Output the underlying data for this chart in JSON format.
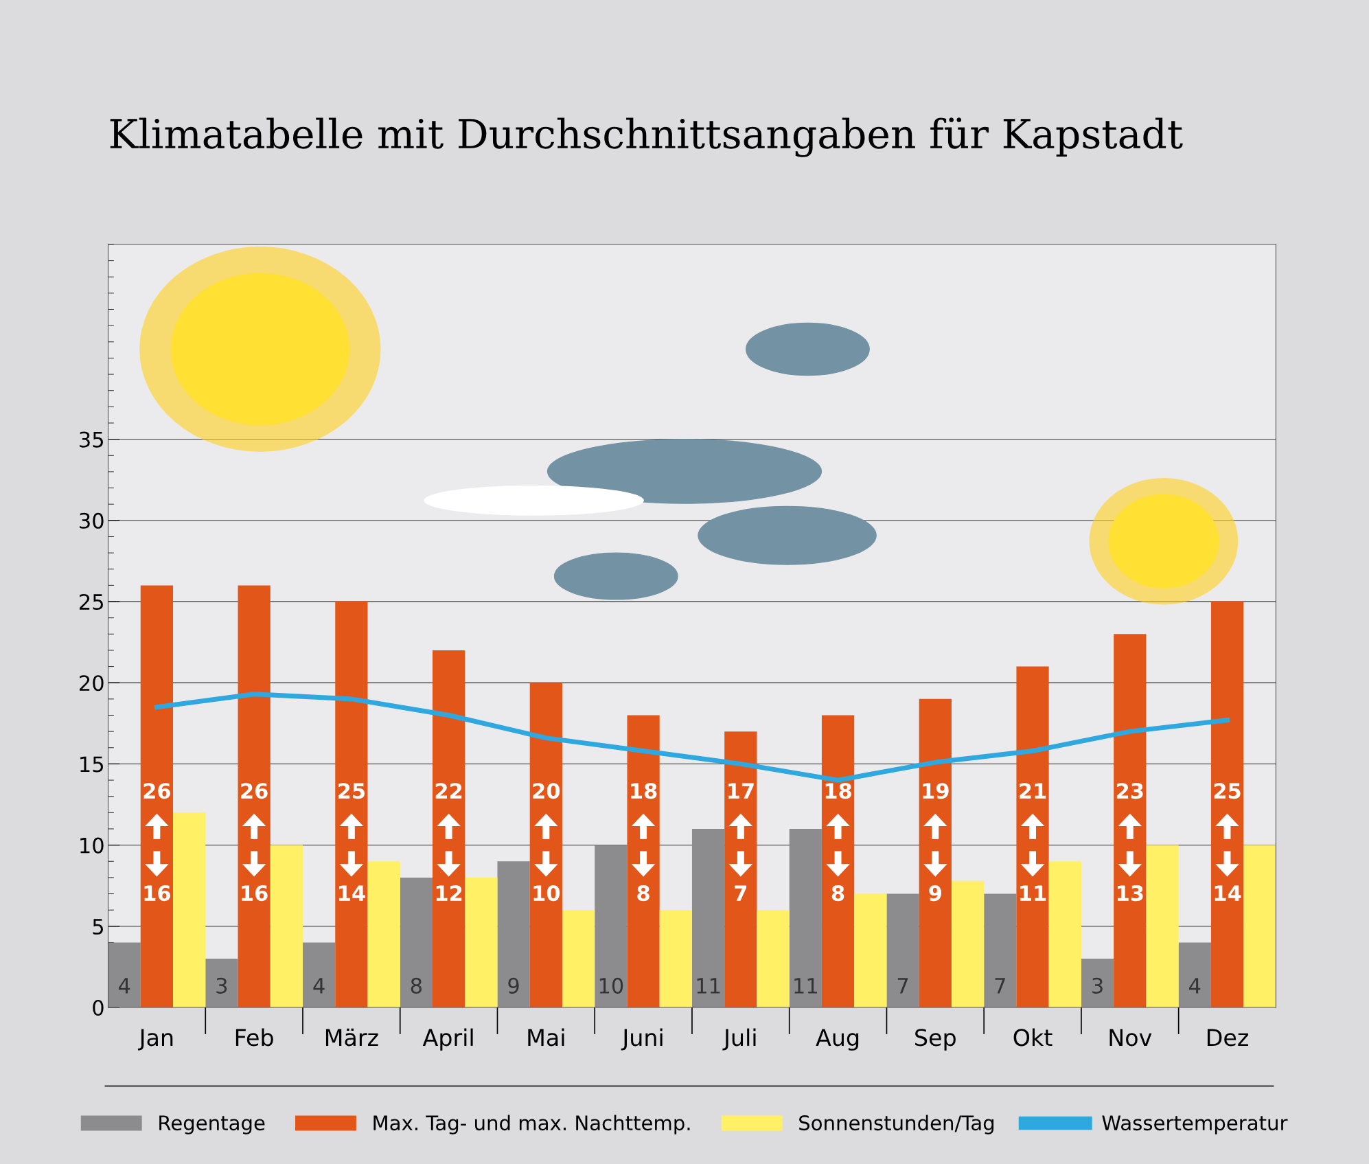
{
  "chart_data": {
    "type": "bar",
    "title": "Klimatabelle mit Durchschnittsangaben für Kapstadt",
    "categories": [
      "Jan",
      "Feb",
      "März",
      "April",
      "Mai",
      "Juni",
      "Juli",
      "Aug",
      "Sep",
      "Okt",
      "Nov",
      "Dez"
    ],
    "series": [
      {
        "name": "Regentage",
        "color": "#8c8c8e",
        "values": [
          4,
          3,
          4,
          8,
          9,
          10,
          11,
          11,
          7,
          7,
          3,
          4
        ],
        "value_labels": [
          "4",
          "3",
          "4",
          "8",
          "9",
          "10",
          "11",
          "11",
          "7",
          "7",
          "3",
          "4"
        ]
      },
      {
        "name": "Max. Tag- und max. Nachttemp.",
        "color": "#e3561a",
        "values": [
          26,
          26,
          25,
          22,
          20,
          18,
          17,
          18,
          19,
          21,
          23,
          25
        ],
        "value_labels": [
          "26",
          "26",
          "25",
          "22",
          "20",
          "18",
          "17",
          "18",
          "19",
          "21",
          "23",
          "25"
        ]
      },
      {
        "name": "Sonnenstunden/Tag",
        "color": "#fff066",
        "values": [
          12,
          10,
          9,
          8,
          6,
          6,
          6,
          7,
          7.8,
          9,
          10,
          10
        ]
      },
      {
        "name": "Wassertemperatur",
        "type": "line",
        "color": "#2ea8df",
        "values": [
          18.5,
          19.3,
          19.0,
          18.0,
          16.6,
          15.8,
          15.0,
          14.0,
          15.1,
          15.8,
          17.0,
          17.7
        ]
      }
    ],
    "annotations": [
      "16",
      "16",
      "14",
      "12",
      "10",
      "8",
      "7",
      "8",
      "9",
      "11",
      "13",
      "14"
    ],
    "ylim": [
      0,
      47
    ],
    "yticks": [
      0,
      5,
      10,
      15,
      20,
      25,
      30,
      35
    ],
    "grid": "y",
    "legend": "bottom"
  }
}
